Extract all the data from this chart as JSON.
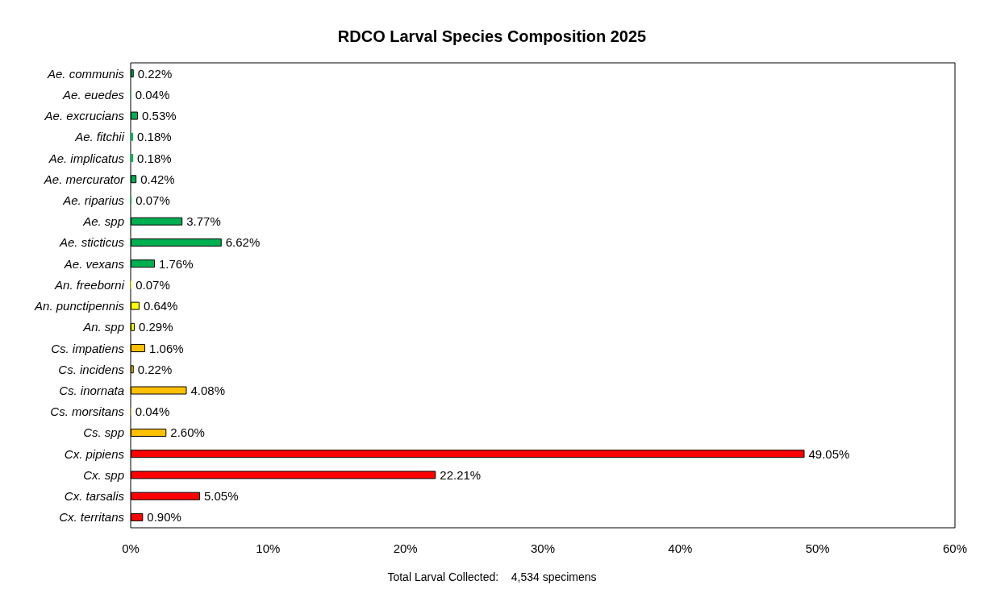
{
  "chart_data": {
    "type": "bar",
    "orientation": "horizontal",
    "title": "RDCO Larval Species Composition 2025",
    "categories": [
      "Ae. communis",
      "Ae. euedes",
      "Ae. excrucians",
      "Ae. fitchii",
      "Ae. implicatus",
      "Ae. mercurator",
      "Ae. riparius",
      "Ae. spp",
      "Ae. sticticus",
      "Ae. vexans",
      "An. freeborni",
      "An. punctipennis",
      "An. spp",
      "Cs. impatiens",
      "Cs. incidens",
      "Cs. inornata",
      "Cs. morsitans",
      "Cs. spp",
      "Cx. pipiens",
      "Cx. spp",
      "Cx. tarsalis",
      "Cx. territans"
    ],
    "values": [
      0.22,
      0.04,
      0.53,
      0.18,
      0.18,
      0.42,
      0.07,
      3.77,
      6.62,
      1.76,
      0.07,
      0.64,
      0.29,
      1.06,
      0.22,
      4.08,
      0.04,
      2.6,
      49.05,
      22.21,
      5.05,
      0.9
    ],
    "value_labels": [
      "0.22%",
      "0.04%",
      "0.53%",
      "0.18%",
      "0.18%",
      "0.42%",
      "0.07%",
      "3.77%",
      "6.62%",
      "1.76%",
      "0.07%",
      "0.64%",
      "0.29%",
      "1.06%",
      "0.22%",
      "4.08%",
      "0.04%",
      "2.60%",
      "49.05%",
      "22.21%",
      "5.05%",
      "0.90%"
    ],
    "colors": [
      "#00b050",
      "#00b050",
      "#00b050",
      "#00b050",
      "#00b050",
      "#00b050",
      "#00b050",
      "#00b050",
      "#00b050",
      "#00b050",
      "#ffff00",
      "#ffff00",
      "#ffff00",
      "#ffc000",
      "#ffc000",
      "#ffc000",
      "#ffc000",
      "#ffc000",
      "#ff0000",
      "#ff0000",
      "#ff0000",
      "#ff0000"
    ],
    "xlim": [
      0,
      60
    ],
    "xticks": [
      {
        "value": 0,
        "label": "0%"
      },
      {
        "value": 10,
        "label": "10%"
      },
      {
        "value": 20,
        "label": "20%"
      },
      {
        "value": 30,
        "label": "30%"
      },
      {
        "value": 40,
        "label": "40%"
      },
      {
        "value": 50,
        "label": "50%"
      },
      {
        "value": 60,
        "label": "60%"
      }
    ],
    "grid": false,
    "annotations": [
      "Total Larval Collected:    4,534 specimens"
    ]
  }
}
